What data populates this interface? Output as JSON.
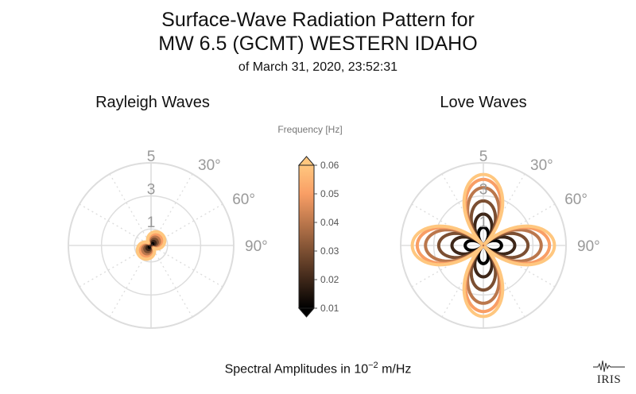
{
  "title_line1": "Surface-Wave Radiation Pattern for",
  "title_line2": "MW 6.5 (GCMT) WESTERN IDAHO",
  "title_line3": "of March 31, 2020, 23:52:31",
  "footer": {
    "text_before": "Spectral Amplitudes in 10",
    "exponent": "−2",
    "text_after": " m/Hz"
  },
  "logo_text": "IRIS",
  "colorbar": {
    "label": "Frequency [Hz]",
    "ticks": [
      "0.01",
      "0.02",
      "0.03",
      "0.04",
      "0.05",
      "0.06"
    ],
    "range": [
      0.01,
      0.06
    ],
    "colormap": "copper",
    "extend": "both"
  },
  "polar_axes": {
    "radial_ticks": [
      "1",
      "3",
      "5"
    ],
    "radial_max": 5,
    "angle_tick_labels": [
      "30°",
      "60°",
      "90°"
    ],
    "grid_color": "#dddddd"
  },
  "chart_data": [
    {
      "type": "polar-line",
      "title": "Rayleigh Waves",
      "series": [
        {
          "frequency": 0.01,
          "color": "#000000",
          "shape": "two-lobe",
          "peak_amplitude": 0.2,
          "lobe_axis_deg": 45
        },
        {
          "frequency": 0.02,
          "color": "#3e2719",
          "shape": "two-lobe",
          "peak_amplitude": 0.35,
          "lobe_axis_deg": 45
        },
        {
          "frequency": 0.03,
          "color": "#7c4f32",
          "shape": "two-lobe",
          "peak_amplitude": 0.5,
          "lobe_axis_deg": 45
        },
        {
          "frequency": 0.04,
          "color": "#bb774c",
          "shape": "two-lobe",
          "peak_amplitude": 0.65,
          "lobe_axis_deg": 45
        },
        {
          "frequency": 0.05,
          "color": "#f99e65",
          "shape": "two-lobe",
          "peak_amplitude": 0.8,
          "lobe_axis_deg": 45
        },
        {
          "frequency": 0.06,
          "color": "#ffc77f",
          "shape": "two-lobe",
          "peak_amplitude": 0.95,
          "lobe_axis_deg": 45
        }
      ]
    },
    {
      "type": "polar-line",
      "title": "Love Waves",
      "series": [
        {
          "frequency": 0.01,
          "color": "#000000",
          "shape": "four-lobe",
          "peak_amplitude": 1.1
        },
        {
          "frequency": 0.02,
          "color": "#3e2719",
          "shape": "four-lobe",
          "peak_amplitude": 1.9
        },
        {
          "frequency": 0.03,
          "color": "#7c4f32",
          "shape": "four-lobe",
          "peak_amplitude": 2.7
        },
        {
          "frequency": 0.04,
          "color": "#bb774c",
          "shape": "four-lobe",
          "peak_amplitude": 3.5
        },
        {
          "frequency": 0.05,
          "color": "#f99e65",
          "shape": "four-lobe",
          "peak_amplitude": 4.0
        },
        {
          "frequency": 0.06,
          "color": "#ffc77f",
          "shape": "four-lobe",
          "peak_amplitude": 4.3
        }
      ]
    }
  ]
}
